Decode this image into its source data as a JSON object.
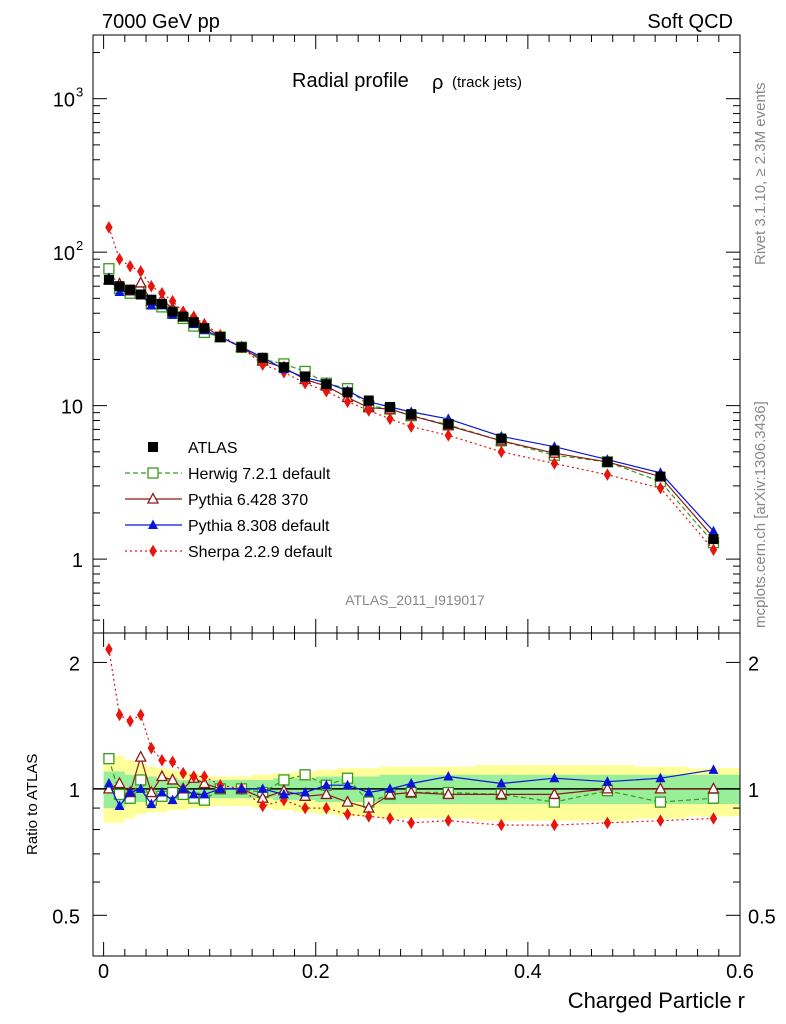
{
  "header": {
    "left": "7000 GeV pp",
    "right": "Soft QCD",
    "side_top": "Rivet 3.1.10, ≥ 2.3M events",
    "side_bottom": "mcplots.cern.ch [arXiv:1306.3436]",
    "analysis_id": "ATLAS_2011_I919017"
  },
  "colors": {
    "ATLAS": "#000000",
    "Herwig": "#3a9a1e",
    "Pythia6": "#8b1a1a",
    "Pythia8": "#0a14d8",
    "Sherpa": "#e8140e",
    "band_inner": "#99ee99",
    "band_outer": "#ffff99"
  },
  "chart_data": [
    {
      "type": "line",
      "title": "Radial profile",
      "title_symbol": "ρ",
      "title_sub": "(track jets)",
      "yscale": "log",
      "xlim": [
        -0.01,
        0.6
      ],
      "ylim": [
        0.33,
        2600
      ],
      "ytick_labels": [
        "1",
        "10",
        "10",
        "10"
      ],
      "ytick_exponents": [
        "",
        "",
        "2",
        "3"
      ],
      "legend_position": "middle-left",
      "x": [
        0.005,
        0.015,
        0.025,
        0.035,
        0.045,
        0.055,
        0.065,
        0.075,
        0.085,
        0.095,
        0.11,
        0.13,
        0.15,
        0.17,
        0.19,
        0.21,
        0.23,
        0.25,
        0.27,
        0.29,
        0.325,
        0.375,
        0.425,
        0.475,
        0.525,
        0.575
      ],
      "series": [
        {
          "name": "ATLAS",
          "key": "ATLAS",
          "style": "data",
          "values": [
            66,
            60,
            57,
            53,
            49,
            46,
            41,
            38,
            35,
            32,
            28,
            24,
            20.5,
            17.8,
            15.5,
            13.8,
            12.2,
            10.8,
            9.8,
            8.8,
            7.6,
            6.1,
            5.1,
            4.3,
            3.45,
            1.35
          ]
        },
        {
          "name": "Herwig 7.2.1 default",
          "key": "Herwig",
          "style": "open-square-dashed",
          "values": [
            78,
            58,
            54,
            56,
            46,
            44,
            40,
            37,
            33,
            30,
            28,
            24,
            20,
            18.7,
            16.7,
            14,
            12.9,
            10,
            9.5,
            8.6,
            7.5,
            5.9,
            4.75,
            4.3,
            3.2,
            1.28
          ]
        },
        {
          "name": "Pythia 6.428 370",
          "key": "Pythia6",
          "style": "open-triangle-solid",
          "values": [
            66,
            62,
            56,
            63,
            48,
            49,
            43,
            38,
            37,
            33,
            28,
            24,
            19.5,
            17.7,
            14.8,
            13.4,
            11.3,
            9.7,
            9.5,
            8.6,
            7.4,
            5.9,
            4.9,
            4.3,
            3.45,
            1.38
          ]
        },
        {
          "name": "Pythia 8.308 default",
          "key": "Pythia8",
          "style": "filled-triangle-solid",
          "values": [
            68,
            55,
            56,
            53,
            45,
            45,
            39,
            38,
            34,
            31,
            28,
            24.1,
            20.6,
            17.3,
            15.2,
            14.1,
            12.5,
            10.6,
            9.8,
            9.1,
            8.2,
            6.3,
            5.4,
            4.45,
            3.65,
            1.52
          ]
        },
        {
          "name": "Sherpa 2.2.9 default",
          "key": "Sherpa",
          "style": "filled-diamond-dotted",
          "values": [
            145,
            90,
            81,
            75,
            60,
            54,
            48,
            41,
            38,
            34,
            28.8,
            24,
            18.5,
            16.5,
            14,
            12.4,
            10.6,
            9.3,
            8.2,
            7.3,
            6.4,
            5.0,
            4.2,
            3.55,
            2.9,
            1.15
          ]
        }
      ]
    },
    {
      "type": "line",
      "ylabel": "Ratio to ATLAS",
      "xlabel": "Charged Particle r",
      "yscale": "log",
      "xlim": [
        -0.01,
        0.6
      ],
      "ylim": [
        0.4,
        2.35
      ],
      "xtick_labels": [
        "0",
        "0.2",
        "0.4",
        "0.6"
      ],
      "ytick_labels": [
        "0.5",
        "1",
        "2"
      ],
      "reference_line": 1,
      "x": [
        0.005,
        0.015,
        0.025,
        0.035,
        0.045,
        0.055,
        0.065,
        0.075,
        0.085,
        0.095,
        0.11,
        0.13,
        0.15,
        0.17,
        0.19,
        0.21,
        0.23,
        0.25,
        0.27,
        0.29,
        0.325,
        0.375,
        0.425,
        0.475,
        0.525,
        0.575
      ],
      "band_outer": {
        "lower": [
          0.83,
          0.83,
          0.85,
          0.87,
          0.88,
          0.88,
          0.89,
          0.89,
          0.9,
          0.9,
          0.91,
          0.91,
          0.9,
          0.89,
          0.88,
          0.87,
          0.86,
          0.86,
          0.85,
          0.85,
          0.85,
          0.84,
          0.84,
          0.84,
          0.85,
          0.86
        ],
        "upper": [
          1.2,
          1.2,
          1.17,
          1.15,
          1.13,
          1.12,
          1.11,
          1.1,
          1.09,
          1.08,
          1.07,
          1.07,
          1.08,
          1.09,
          1.1,
          1.11,
          1.12,
          1.12,
          1.13,
          1.13,
          1.13,
          1.14,
          1.14,
          1.14,
          1.13,
          1.12
        ]
      },
      "band_inner": {
        "lower": [
          0.9,
          0.9,
          0.92,
          0.93,
          0.93,
          0.94,
          0.94,
          0.95,
          0.95,
          0.95,
          0.95,
          0.95,
          0.95,
          0.94,
          0.94,
          0.93,
          0.93,
          0.93,
          0.92,
          0.92,
          0.92,
          0.92,
          0.92,
          0.92,
          0.92,
          0.92
        ],
        "upper": [
          1.1,
          1.1,
          1.08,
          1.07,
          1.07,
          1.06,
          1.06,
          1.05,
          1.05,
          1.05,
          1.05,
          1.05,
          1.05,
          1.06,
          1.06,
          1.07,
          1.07,
          1.07,
          1.08,
          1.08,
          1.08,
          1.08,
          1.08,
          1.08,
          1.08,
          1.08
        ]
      },
      "series": [
        {
          "name": "Herwig 7.2.1 default",
          "key": "Herwig",
          "style": "open-square-dashed",
          "values": [
            1.18,
            0.97,
            0.95,
            1.05,
            0.94,
            0.96,
            0.98,
            0.97,
            0.95,
            0.94,
            1.0,
            1.0,
            0.98,
            1.05,
            1.08,
            1.02,
            1.06,
            0.93,
            0.97,
            0.98,
            0.98,
            0.97,
            0.93,
            0.99,
            0.93,
            0.95
          ]
        },
        {
          "name": "Pythia 6.428 370",
          "key": "Pythia6",
          "style": "open-triangle-solid",
          "values": [
            1.0,
            1.03,
            0.98,
            1.19,
            0.98,
            1.07,
            1.05,
            1.0,
            1.06,
            1.03,
            1.0,
            1.0,
            0.95,
            0.99,
            0.96,
            0.97,
            0.93,
            0.9,
            0.97,
            0.98,
            0.97,
            0.97,
            0.97,
            1.0,
            1.0,
            1.0
          ]
        },
        {
          "name": "Pythia 8.308 default",
          "key": "Pythia8",
          "style": "filled-triangle-solid",
          "values": [
            1.03,
            0.91,
            0.98,
            1.0,
            0.92,
            0.98,
            0.94,
            1.0,
            0.97,
            0.97,
            1.0,
            1.0,
            1.0,
            0.97,
            0.98,
            1.02,
            1.02,
            0.98,
            1.0,
            1.03,
            1.07,
            1.03,
            1.06,
            1.04,
            1.06,
            1.11
          ]
        },
        {
          "name": "Sherpa 2.2.9 default",
          "key": "Sherpa",
          "style": "filled-diamond-dotted",
          "values": [
            2.15,
            1.5,
            1.45,
            1.5,
            1.25,
            1.17,
            1.16,
            1.09,
            1.07,
            1.07,
            1.02,
            1.0,
            0.91,
            0.94,
            0.9,
            0.9,
            0.87,
            0.86,
            0.85,
            0.83,
            0.84,
            0.82,
            0.82,
            0.83,
            0.84,
            0.85
          ]
        }
      ]
    }
  ]
}
